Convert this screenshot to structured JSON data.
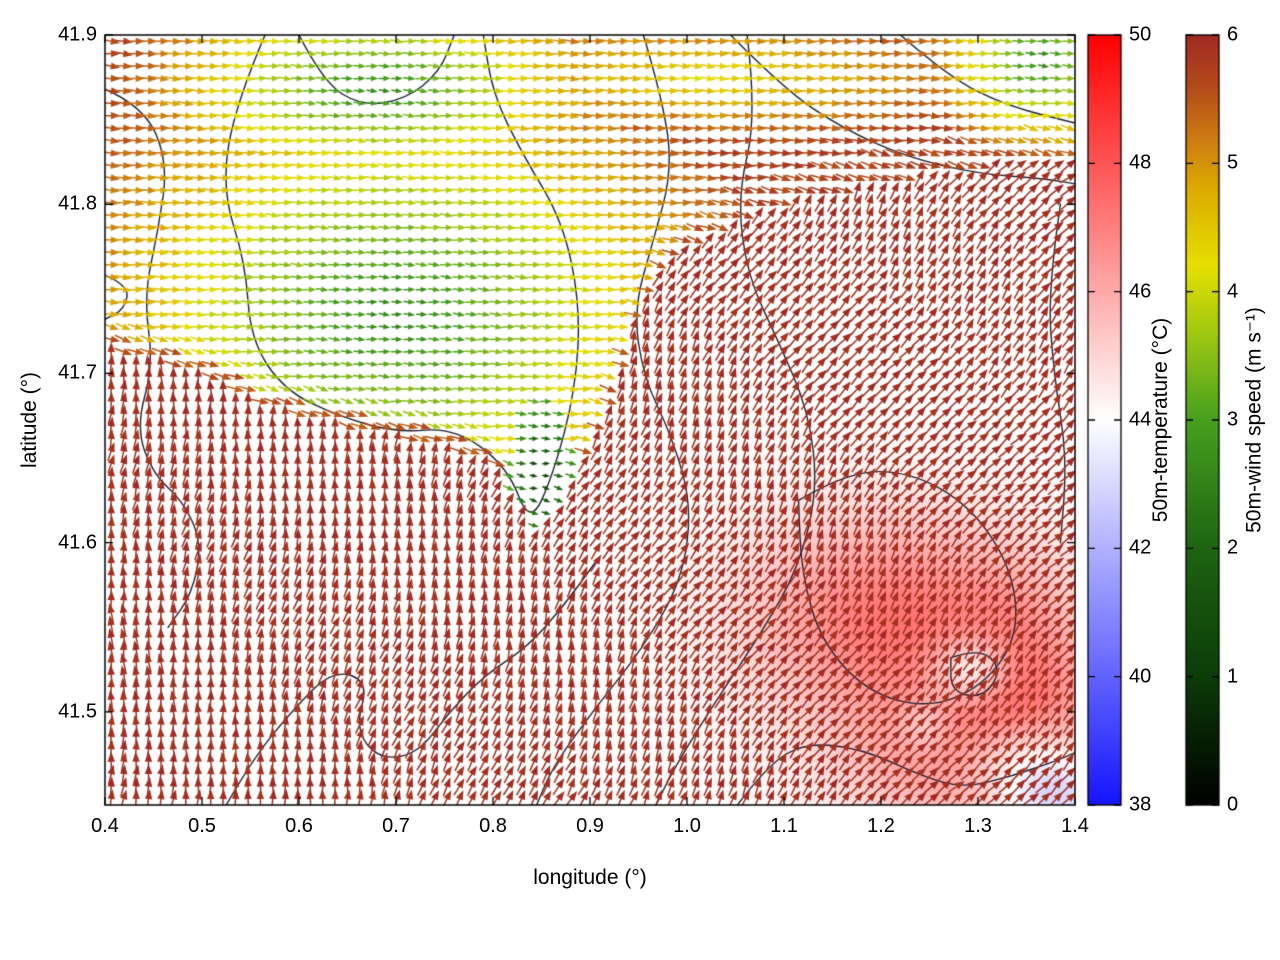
{
  "chart_data": {
    "type": "quiver",
    "title": "",
    "xlabel": "longitude (°)",
    "ylabel": "latitude (°)",
    "xlim": [
      0.4,
      1.4
    ],
    "ylim": [
      41.445,
      41.9
    ],
    "grid": false,
    "x_ticks": {
      "values": [
        0.4,
        0.5,
        0.6,
        0.7,
        0.8,
        0.9,
        1.0,
        1.1,
        1.2,
        1.3,
        1.4
      ],
      "labels": [
        "0.4",
        "0.5",
        "0.6",
        "0.7",
        "0.8",
        "0.9",
        "1.0",
        "1.1",
        "1.2",
        "1.3",
        "1.4"
      ]
    },
    "y_ticks": {
      "values": [
        41.5,
        41.6,
        41.7,
        41.8,
        41.9
      ],
      "labels": [
        "41.5",
        "41.6",
        "41.7",
        "41.8",
        "41.9"
      ]
    },
    "colorbars": [
      {
        "label": "50m-temperature (°C)",
        "min": 38,
        "max": 50,
        "ticks": {
          "values": [
            38,
            40,
            42,
            44,
            46,
            48,
            50
          ],
          "labels": [
            "38",
            "40",
            "42",
            "44",
            "46",
            "48",
            "50"
          ]
        },
        "stops": [
          {
            "v": 38,
            "c": "#1414ff"
          },
          {
            "v": 44,
            "c": "#ffffff"
          },
          {
            "v": 50,
            "c": "#ff0000"
          }
        ]
      },
      {
        "label": "50m-wind speed (m s⁻¹)",
        "min": 0,
        "max": 6,
        "ticks": {
          "values": [
            0,
            1,
            2,
            3,
            4,
            5,
            6
          ],
          "labels": [
            "0",
            "1",
            "2",
            "3",
            "4",
            "5",
            "6"
          ]
        },
        "stops": [
          {
            "v": 0,
            "c": "#000000"
          },
          {
            "v": 1,
            "c": "#0c3c08"
          },
          {
            "v": 2,
            "c": "#1e6412"
          },
          {
            "v": 3,
            "c": "#46a01e"
          },
          {
            "v": 3.6,
            "c": "#96c414"
          },
          {
            "v": 4.2,
            "c": "#e6e000"
          },
          {
            "v": 4.8,
            "c": "#dcaa00"
          },
          {
            "v": 5.2,
            "c": "#cc7a14"
          },
          {
            "v": 5.6,
            "c": "#b44a1a"
          },
          {
            "v": 6,
            "c": "#a02a24"
          }
        ]
      }
    ],
    "style": {
      "background": "#ffffff",
      "frame_color": "#000000",
      "contour_color": "#1c2430"
    },
    "field": {
      "grid_nx": 78,
      "grid_ny": 62,
      "sea_speed": 6.0,
      "front": [
        [
          0.4,
          41.715
        ],
        [
          0.5,
          41.7
        ],
        [
          0.56,
          41.68
        ],
        [
          0.65,
          41.668
        ],
        [
          0.74,
          41.658
        ],
        [
          0.8,
          41.645
        ],
        [
          0.845,
          41.607
        ],
        [
          0.87,
          41.625
        ],
        [
          0.9,
          41.655
        ],
        [
          0.925,
          41.69
        ],
        [
          0.945,
          41.73
        ],
        [
          0.97,
          41.76
        ],
        [
          1.0,
          41.775
        ],
        [
          1.05,
          41.79
        ],
        [
          1.1,
          41.8
        ],
        [
          1.2,
          41.812
        ],
        [
          1.3,
          41.822
        ],
        [
          1.4,
          41.828
        ]
      ],
      "green_cores": [
        {
          "cx": 0.7,
          "cy": 41.735,
          "rx": 0.17,
          "ry": 0.075,
          "bias": 0
        },
        {
          "cx": 0.68,
          "cy": 41.868,
          "rx": 0.12,
          "ry": 0.032,
          "bias": 0
        },
        {
          "cx": 1.365,
          "cy": 41.885,
          "rx": 0.055,
          "ry": 0.028,
          "bias": 0
        },
        {
          "cx": 1.02,
          "cy": 41.875,
          "rx": 0.28,
          "ry": 0.035,
          "bias": 1.6
        }
      ],
      "core_min_speed": 2.55,
      "core_gain": 1.35,
      "land_max_speed": 5.7,
      "calm_patch": {
        "cx": 0.85,
        "cy": 41.64,
        "rx": 0.035,
        "ry": 0.045,
        "min_speed": 0.9,
        "gain": 2.2
      },
      "front_fringe_width": 0.01,
      "front_fringe_speed": 5.5,
      "land_angle_deg": -4,
      "front_angle_deg": -18,
      "sea_angle_base": 88,
      "sea_angle_slope": -42,
      "sea_angle_wiggle": 10
    },
    "temperature": {
      "base": 44.0,
      "blobs": [
        {
          "cx": 1.21,
          "cy": 41.555,
          "sx": 0.1,
          "sy": 0.042,
          "amp": 3.2
        },
        {
          "cx": 1.3,
          "cy": 41.475,
          "sx": 0.09,
          "sy": 0.03,
          "amp": 2.8
        },
        {
          "cx": 1.345,
          "cy": 41.52,
          "sx": 0.05,
          "sy": 0.04,
          "amp": 2.2
        },
        {
          "cx": 1.295,
          "cy": 41.525,
          "sx": 0.03,
          "sy": 0.014,
          "amp": -3.2
        },
        {
          "cx": 1.335,
          "cy": 41.475,
          "sx": 0.045,
          "sy": 0.018,
          "amp": -2.6
        },
        {
          "cx": 1.375,
          "cy": 41.452,
          "sx": 0.04,
          "sy": 0.02,
          "amp": -2.2
        },
        {
          "cx": 1.245,
          "cy": 41.492,
          "sx": 0.02,
          "sy": 0.012,
          "amp": -1.6
        }
      ]
    },
    "contours": [
      [
        [
          0.565,
          41.9
        ],
        [
          0.535,
          41.86
        ],
        [
          0.52,
          41.81
        ],
        [
          0.545,
          41.765
        ],
        [
          0.55,
          41.72
        ],
        [
          0.585,
          41.69
        ],
        [
          0.64,
          41.675
        ],
        [
          0.7,
          41.665
        ],
        [
          0.76,
          41.668
        ],
        [
          0.815,
          41.645
        ],
        [
          0.838,
          41.61
        ],
        [
          0.862,
          41.64
        ],
        [
          0.885,
          41.69
        ],
        [
          0.89,
          41.74
        ],
        [
          0.872,
          41.79
        ],
        [
          0.83,
          41.83
        ],
        [
          0.8,
          41.865
        ],
        [
          0.79,
          41.9
        ]
      ],
      [
        [
          0.4,
          41.868
        ],
        [
          0.44,
          41.858
        ],
        [
          0.465,
          41.825
        ],
        [
          0.455,
          41.785
        ],
        [
          0.44,
          41.745
        ],
        [
          0.45,
          41.705
        ],
        [
          0.432,
          41.668
        ],
        [
          0.45,
          41.64
        ],
        [
          0.48,
          41.625
        ],
        [
          0.5,
          41.6
        ],
        [
          0.49,
          41.57
        ],
        [
          0.465,
          41.55
        ]
      ],
      [
        [
          0.6,
          41.9
        ],
        [
          0.625,
          41.872
        ],
        [
          0.665,
          41.858
        ],
        [
          0.71,
          41.862
        ],
        [
          0.745,
          41.878
        ],
        [
          0.76,
          41.9
        ]
      ],
      [
        [
          0.955,
          41.9
        ],
        [
          0.975,
          41.862
        ],
        [
          0.985,
          41.82
        ],
        [
          0.965,
          41.778
        ],
        [
          0.945,
          41.738
        ],
        [
          0.955,
          41.698
        ],
        [
          0.985,
          41.662
        ],
        [
          1.005,
          41.622
        ],
        [
          0.995,
          41.578
        ],
        [
          0.955,
          41.538
        ],
        [
          0.905,
          41.502
        ],
        [
          0.862,
          41.468
        ],
        [
          0.845,
          41.445
        ]
      ],
      [
        [
          1.062,
          41.9
        ],
        [
          1.072,
          41.852
        ],
        [
          1.052,
          41.805
        ],
        [
          1.062,
          41.758
        ],
        [
          1.095,
          41.718
        ],
        [
          1.125,
          41.678
        ],
        [
          1.135,
          41.632
        ],
        [
          1.115,
          41.585
        ],
        [
          1.075,
          41.545
        ],
        [
          1.028,
          41.505
        ],
        [
          0.988,
          41.468
        ],
        [
          0.968,
          41.445
        ]
      ],
      [
        [
          0.525,
          41.445
        ],
        [
          0.552,
          41.472
        ],
        [
          0.595,
          41.502
        ],
        [
          0.635,
          41.525
        ],
        [
          0.672,
          41.518
        ],
        [
          0.658,
          41.49
        ],
        [
          0.682,
          41.472
        ],
        [
          0.722,
          41.475
        ],
        [
          0.755,
          41.5
        ],
        [
          0.792,
          41.522
        ],
        [
          0.835,
          41.538
        ],
        [
          0.872,
          41.562
        ],
        [
          0.905,
          41.588
        ]
      ],
      [
        [
          1.115,
          41.625
        ],
        [
          1.165,
          41.642
        ],
        [
          1.23,
          41.642
        ],
        [
          1.292,
          41.622
        ],
        [
          1.335,
          41.585
        ],
        [
          1.342,
          41.545
        ],
        [
          1.305,
          41.515
        ],
        [
          1.248,
          41.502
        ],
        [
          1.185,
          41.512
        ],
        [
          1.138,
          41.542
        ],
        [
          1.118,
          41.582
        ],
        [
          1.115,
          41.625
        ]
      ],
      [
        [
          1.272,
          41.532
        ],
        [
          1.302,
          41.538
        ],
        [
          1.325,
          41.525
        ],
        [
          1.305,
          41.508
        ],
        [
          1.272,
          41.512
        ],
        [
          1.272,
          41.532
        ]
      ],
      [
        [
          1.052,
          41.445
        ],
        [
          1.082,
          41.468
        ],
        [
          1.122,
          41.482
        ],
        [
          1.182,
          41.478
        ],
        [
          1.242,
          41.462
        ],
        [
          1.285,
          41.455
        ],
        [
          1.335,
          41.462
        ],
        [
          1.385,
          41.472
        ],
        [
          1.4,
          41.476
        ]
      ],
      [
        [
          0.4,
          41.758
        ],
        [
          0.425,
          41.752
        ],
        [
          0.42,
          41.738
        ],
        [
          0.4,
          41.732
        ]
      ],
      [
        [
          1.045,
          41.9
        ],
        [
          1.1,
          41.868
        ],
        [
          1.16,
          41.845
        ],
        [
          1.225,
          41.828
        ],
        [
          1.3,
          41.818
        ],
        [
          1.37,
          41.815
        ],
        [
          1.4,
          41.812
        ]
      ],
      [
        [
          1.22,
          41.9
        ],
        [
          1.27,
          41.875
        ],
        [
          1.33,
          41.858
        ],
        [
          1.4,
          41.848
        ]
      ],
      [
        [
          1.385,
          41.8
        ],
        [
          1.372,
          41.75
        ],
        [
          1.378,
          41.7
        ],
        [
          1.392,
          41.65
        ],
        [
          1.385,
          41.6
        ]
      ]
    ]
  }
}
